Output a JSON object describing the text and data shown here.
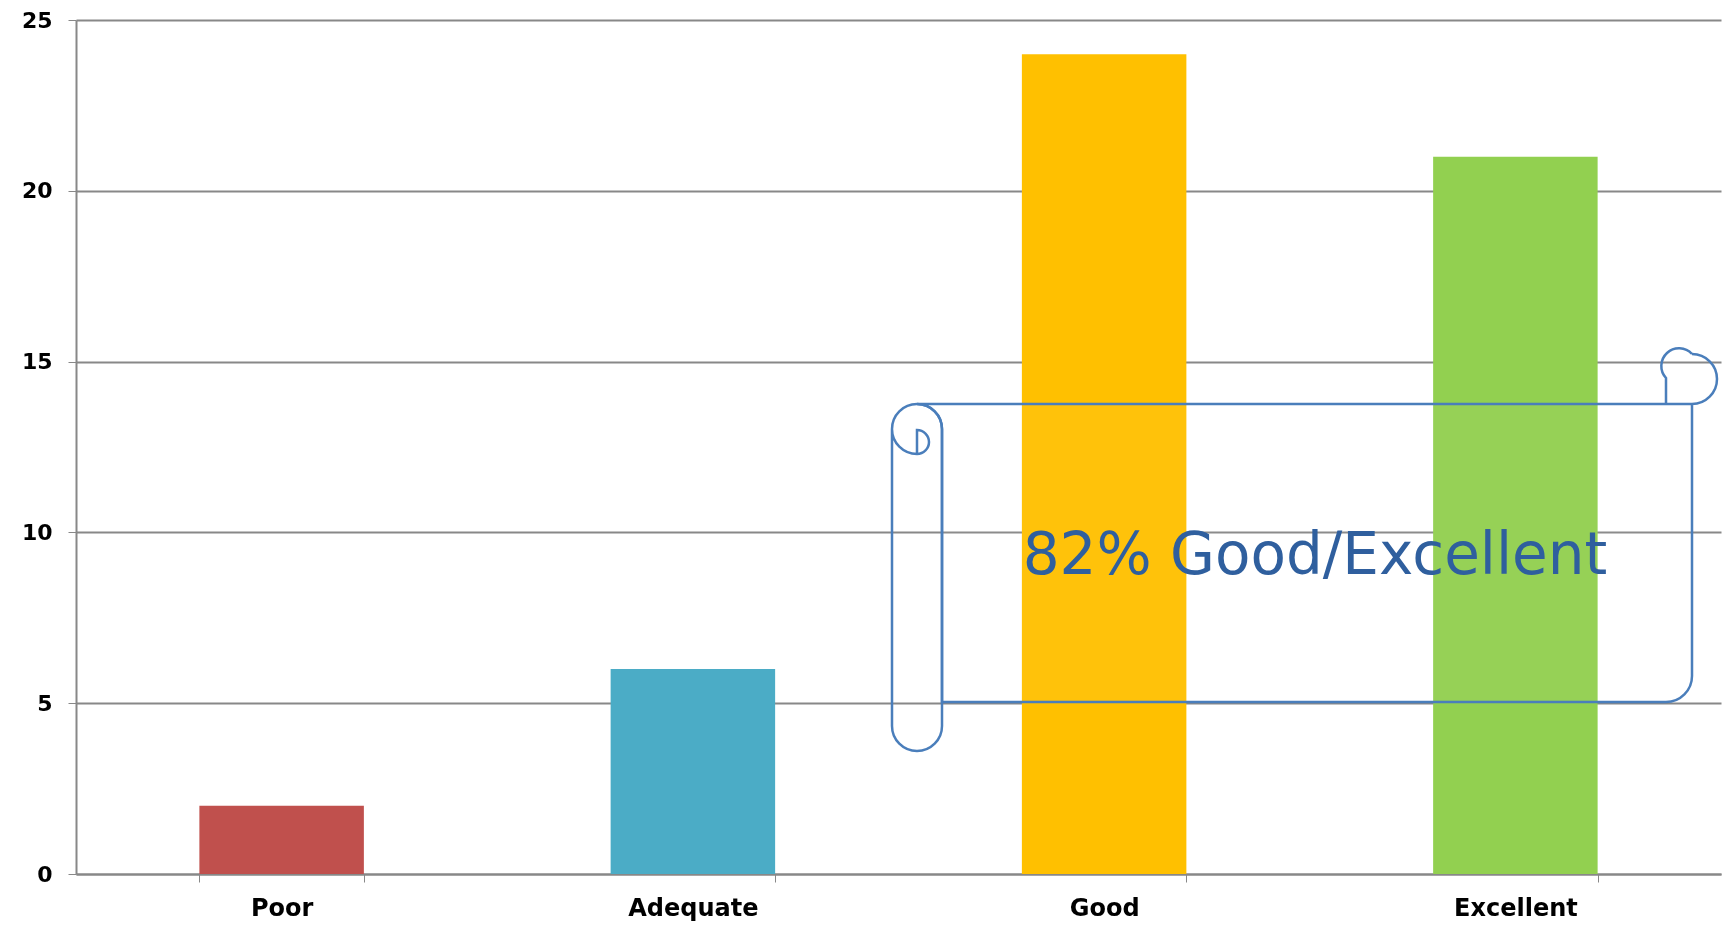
{
  "chart_data": {
    "type": "bar",
    "categories": [
      "Poor",
      "Adequate",
      "Good",
      "Excellent"
    ],
    "values": [
      2,
      6,
      24,
      21
    ],
    "colors": [
      "#c0504d",
      "#4bacc6",
      "#ffc000",
      "#92d050"
    ],
    "ylim": [
      0,
      25
    ],
    "yticks": [
      0,
      5,
      10,
      15,
      20,
      25
    ],
    "grid": "y",
    "annotations": [
      "82% Good/Excellent"
    ]
  }
}
